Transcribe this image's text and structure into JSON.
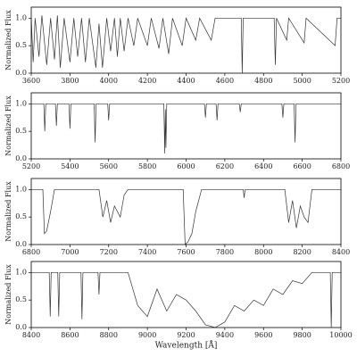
{
  "chart_data": [
    {
      "type": "line",
      "ylabel": "Normalized Flux",
      "color": "#333333",
      "xlim": [
        3600,
        5200
      ],
      "xticks": [
        3600,
        3800,
        4000,
        4200,
        4400,
        4600,
        4800,
        5000,
        5200
      ],
      "ylim": [
        0,
        1.2
      ],
      "yticks": [
        {
          "value": 0,
          "label": "0.0"
        },
        {
          "value": 0.5,
          "label": "0.5"
        },
        {
          "value": 1,
          "label": "1.0"
        }
      ],
      "x": [
        3600,
        3610,
        3620,
        3640,
        3655,
        3680,
        3700,
        3720,
        3735,
        3750,
        3770,
        3800,
        3820,
        3840,
        3860,
        3880,
        3900,
        3934,
        3950,
        3968,
        3990,
        4010,
        4030,
        4045,
        4060,
        4080,
        4100,
        4130,
        4150,
        4200,
        4220,
        4260,
        4280,
        4310,
        4330,
        4380,
        4400,
        4450,
        4470,
        4530,
        4550,
        4685,
        4690,
        4695,
        4855,
        4861,
        4867,
        4920,
        4930,
        5010,
        5020,
        5170,
        5180,
        5200
      ],
      "values": [
        1,
        0.2,
        1,
        0.3,
        1.05,
        0.15,
        1,
        0.25,
        1.05,
        0.1,
        1,
        0.2,
        1,
        0.3,
        1,
        0.2,
        1,
        0.1,
        0.9,
        0.1,
        1,
        0.4,
        1,
        0.3,
        1,
        0.4,
        1,
        0.5,
        1,
        0.5,
        1,
        0.45,
        1,
        0.35,
        1,
        0.5,
        1,
        0.6,
        1,
        0.6,
        1,
        1,
        0,
        1,
        1,
        0.15,
        1,
        0.6,
        1,
        0.55,
        1,
        0.5,
        1,
        1
      ]
    },
    {
      "type": "line",
      "ylabel": "Normalized Flux",
      "color": "#333333",
      "xlim": [
        5200,
        6800
      ],
      "xticks": [
        5200,
        5400,
        5600,
        5800,
        6000,
        6200,
        6400,
        6600,
        6800
      ],
      "ylim": [
        0,
        1.2
      ],
      "yticks": [
        {
          "value": 0,
          "label": "0.0"
        },
        {
          "value": 0.5,
          "label": "0.5"
        },
        {
          "value": 1,
          "label": "1.0"
        }
      ],
      "x": [
        5200,
        5265,
        5270,
        5275,
        5325,
        5330,
        5335,
        5395,
        5400,
        5405,
        5525,
        5530,
        5535,
        5595,
        5600,
        5605,
        5885,
        5890,
        5893,
        5896,
        5900,
        6095,
        6100,
        6105,
        6155,
        6160,
        6165,
        6275,
        6280,
        6285,
        6495,
        6500,
        6505,
        6558,
        6563,
        6568,
        6800
      ],
      "values": [
        1,
        1,
        0.5,
        1,
        1,
        0.6,
        1,
        1,
        0.55,
        1,
        1,
        0.3,
        1,
        1,
        0.7,
        1,
        1,
        0.1,
        0.9,
        0.2,
        1,
        1,
        0.75,
        1,
        1,
        0.7,
        1,
        1,
        0.85,
        1,
        1,
        0.75,
        1,
        1,
        0.3,
        1,
        1
      ]
    },
    {
      "type": "line",
      "ylabel": "Normalized Flux",
      "color": "#333333",
      "xlim": [
        6800,
        8400
      ],
      "xticks": [
        6800,
        7000,
        7200,
        7400,
        7600,
        7800,
        8000,
        8200,
        8400
      ],
      "ylim": [
        0,
        1.2
      ],
      "yticks": [
        {
          "value": 0,
          "label": "0.0"
        },
        {
          "value": 0.5,
          "label": "0.5"
        },
        {
          "value": 1,
          "label": "1.0"
        }
      ],
      "x": [
        6800,
        6860,
        6868,
        6880,
        6900,
        6920,
        7150,
        7170,
        7190,
        7210,
        7230,
        7260,
        7280,
        7300,
        7585,
        7595,
        7610,
        7630,
        7650,
        7680,
        7895,
        7900,
        7905,
        8110,
        8130,
        8150,
        8170,
        8190,
        8210,
        8230,
        8250,
        8400
      ],
      "values": [
        1,
        1,
        0.2,
        0.25,
        0.6,
        1,
        1,
        0.5,
        0.8,
        0.4,
        0.7,
        0.5,
        0.9,
        1,
        1,
        0,
        0.05,
        0.2,
        0.6,
        1,
        1,
        0.85,
        1,
        1,
        0.4,
        0.8,
        0.3,
        0.7,
        0.5,
        0.4,
        1,
        1
      ]
    },
    {
      "type": "line",
      "ylabel": "Normalized Flux",
      "xlabel": "Wavelength [Å]",
      "color": "#333333",
      "xlim": [
        8400,
        10000
      ],
      "xticks": [
        8400,
        8600,
        8800,
        9000,
        9200,
        9400,
        9600,
        9800,
        10000
      ],
      "ylim": [
        0,
        1.2
      ],
      "yticks": [
        {
          "value": 0,
          "label": "0.0"
        },
        {
          "value": 0.5,
          "label": "0.5"
        },
        {
          "value": 1,
          "label": "1.0"
        }
      ],
      "x": [
        8400,
        8493,
        8498,
        8503,
        8537,
        8542,
        8547,
        8657,
        8662,
        8667,
        8745,
        8750,
        8755,
        8900,
        8950,
        9000,
        9050,
        9100,
        9150,
        9200,
        9250,
        9300,
        9350,
        9400,
        9450,
        9500,
        9550,
        9600,
        9650,
        9700,
        9750,
        9800,
        9850,
        9945,
        9950,
        9955,
        10000
      ],
      "values": [
        1,
        1,
        0.2,
        1,
        1,
        0.2,
        1,
        1,
        0.15,
        1,
        1,
        0.6,
        1,
        1,
        0.4,
        0.2,
        0.7,
        0.3,
        0.6,
        0.5,
        0.3,
        0.05,
        0,
        0.1,
        0.4,
        0.3,
        0.5,
        0.4,
        0.7,
        0.6,
        0.85,
        0.8,
        1,
        1,
        0,
        1,
        1
      ]
    }
  ]
}
